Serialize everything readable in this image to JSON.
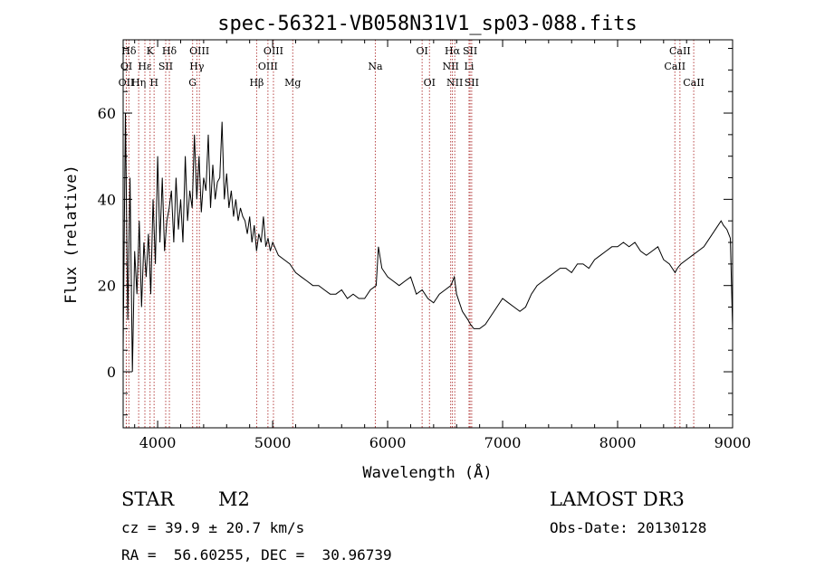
{
  "chart_data": {
    "type": "line",
    "title": "spec-56321-VB058N31V1_sp03-088.fits",
    "xlabel": "Wavelength (Å)",
    "ylabel": "Flux (relative)",
    "xlim": [
      3700,
      9000
    ],
    "ylim": [
      -13,
      77
    ],
    "xticks": [
      4000,
      5000,
      6000,
      7000,
      8000,
      9000
    ],
    "yticks": [
      0,
      20,
      40,
      60
    ],
    "series": [
      {
        "x": [
          3700,
          3720,
          3740,
          3760,
          3780,
          3800,
          3820,
          3840,
          3860,
          3880,
          3900,
          3920,
          3940,
          3960,
          3980,
          4000,
          4020,
          4040,
          4060,
          4080,
          4100,
          4120,
          4140,
          4160,
          4180,
          4200,
          4220,
          4240,
          4260,
          4280,
          4300,
          4320,
          4340,
          4360,
          4380,
          4400,
          4420,
          4440,
          4460,
          4480,
          4500,
          4520,
          4540,
          4560,
          4580,
          4600,
          4620,
          4640,
          4660,
          4680,
          4700,
          4720,
          4740,
          4760,
          4780,
          4800,
          4820,
          4840,
          4860,
          4880,
          4900,
          4920,
          4940,
          4960,
          4980,
          5000,
          5050,
          5100,
          5150,
          5200,
          5250,
          5300,
          5350,
          5400,
          5450,
          5500,
          5550,
          5600,
          5650,
          5700,
          5750,
          5800,
          5850,
          5900,
          5920,
          5950,
          6000,
          6050,
          6100,
          6150,
          6200,
          6250,
          6300,
          6350,
          6400,
          6450,
          6500,
          6550,
          6580,
          6600,
          6650,
          6700,
          6720,
          6750,
          6800,
          6850,
          6900,
          6950,
          7000,
          7050,
          7100,
          7150,
          7200,
          7250,
          7300,
          7350,
          7400,
          7450,
          7500,
          7550,
          7600,
          7650,
          7700,
          7750,
          7800,
          7850,
          7900,
          7950,
          8000,
          8050,
          8100,
          8150,
          8200,
          8250,
          8300,
          8350,
          8400,
          8450,
          8500,
          8520,
          8550,
          8600,
          8650,
          8700,
          8750,
          8800,
          8850,
          8900,
          8920,
          8950,
          8980,
          9000
        ],
        "y": [
          5,
          60,
          12,
          45,
          0,
          28,
          18,
          35,
          15,
          30,
          22,
          32,
          18,
          40,
          25,
          50,
          30,
          45,
          28,
          35,
          38,
          42,
          30,
          45,
          33,
          40,
          30,
          50,
          35,
          42,
          38,
          55,
          40,
          50,
          37,
          45,
          42,
          55,
          38,
          48,
          40,
          44,
          45,
          58,
          40,
          46,
          38,
          42,
          36,
          40,
          35,
          38,
          36,
          35,
          32,
          36,
          30,
          34,
          28,
          32,
          30,
          36,
          29,
          31,
          28,
          30,
          27,
          26,
          25,
          23,
          22,
          21,
          20,
          20,
          19,
          18,
          18,
          19,
          17,
          18,
          17,
          17,
          19,
          20,
          29,
          24,
          22,
          21,
          20,
          21,
          22,
          18,
          19,
          17,
          16,
          18,
          19,
          20,
          22,
          18,
          14,
          12,
          11,
          10,
          10,
          11,
          13,
          15,
          17,
          16,
          15,
          14,
          15,
          18,
          20,
          21,
          22,
          23,
          24,
          24,
          23,
          25,
          25,
          24,
          26,
          27,
          28,
          29,
          29,
          30,
          29,
          30,
          28,
          27,
          28,
          29,
          26,
          25,
          23,
          24,
          25,
          26,
          27,
          28,
          29,
          31,
          33,
          35,
          34,
          33,
          31,
          10
        ]
      }
    ],
    "lines": [
      {
        "label": "Hδ",
        "wave": 3750,
        "row": 0,
        "color": "#b84848"
      },
      {
        "label": "K",
        "wave": 3934,
        "row": 0,
        "color": "#b84848"
      },
      {
        "label": "Hδ",
        "wave": 4102,
        "row": 0,
        "color": "#b84848"
      },
      {
        "label": "OIII",
        "wave": 4363,
        "row": 0,
        "color": "#b84848"
      },
      {
        "label": "OIII",
        "wave": 5007,
        "row": 0,
        "color": "#b84848"
      },
      {
        "label": "OI",
        "wave": 6300,
        "row": 0,
        "color": "#b84848"
      },
      {
        "label": "Hα",
        "wave": 6563,
        "row": 0,
        "color": "#b84848"
      },
      {
        "label": "SII",
        "wave": 6717,
        "row": 0,
        "color": "#b84848"
      },
      {
        "label": "CaII",
        "wave": 8542,
        "row": 0,
        "color": "#b84848"
      },
      {
        "label": "OI",
        "wave": 3728,
        "row": 1,
        "color": "#b84848"
      },
      {
        "label": "Hε",
        "wave": 3889,
        "row": 1,
        "color": "#b84848"
      },
      {
        "label": "SII",
        "wave": 4070,
        "row": 1,
        "color": "#b84848"
      },
      {
        "label": "Hγ",
        "wave": 4341,
        "row": 1,
        "color": "#b84848"
      },
      {
        "label": "OIII",
        "wave": 4959,
        "row": 1,
        "color": "#b84848"
      },
      {
        "label": "Na",
        "wave": 5893,
        "row": 1,
        "color": "#b84848"
      },
      {
        "label": "NII",
        "wave": 6548,
        "row": 1,
        "color": "#b84848"
      },
      {
        "label": "Li",
        "wave": 6708,
        "row": 1,
        "color": "#b84848"
      },
      {
        "label": "CaII",
        "wave": 8498,
        "row": 1,
        "color": "#b84848"
      },
      {
        "label": "OII",
        "wave": 3727,
        "row": 2,
        "color": "#b84848"
      },
      {
        "label": "Hη",
        "wave": 3835,
        "row": 2,
        "color": "#b84848"
      },
      {
        "label": "H",
        "wave": 3969,
        "row": 2,
        "color": "#b84848"
      },
      {
        "label": "G",
        "wave": 4304,
        "row": 2,
        "color": "#b84848"
      },
      {
        "label": "Hβ",
        "wave": 4861,
        "row": 2,
        "color": "#b84848"
      },
      {
        "label": "Mg",
        "wave": 5175,
        "row": 2,
        "color": "#b84848"
      },
      {
        "label": "OI",
        "wave": 6364,
        "row": 2,
        "color": "#b84848"
      },
      {
        "label": "NII",
        "wave": 6584,
        "row": 2,
        "color": "#b84848"
      },
      {
        "label": "SII",
        "wave": 6731,
        "row": 2,
        "color": "#b84848"
      },
      {
        "label": "CaII",
        "wave": 8662,
        "row": 2,
        "color": "#b84848"
      }
    ]
  },
  "info": {
    "class": "STAR",
    "subclass": "M2",
    "survey": "LAMOST DR3",
    "cz": "cz = 39.9 ± 20.7 km/s",
    "obs_date": "Obs-Date: 20130128",
    "radec": "RA =  56.60255, DEC =  30.96739"
  }
}
